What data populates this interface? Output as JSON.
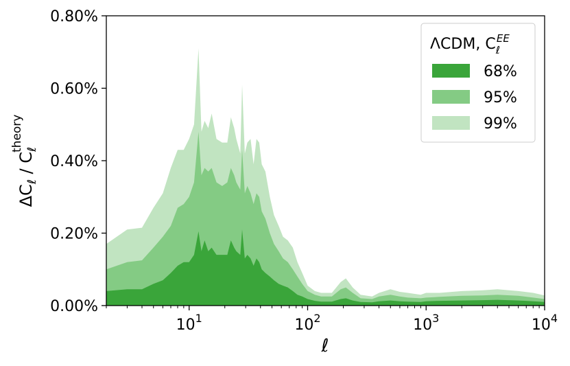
{
  "chart_data": {
    "type": "area",
    "xscale": "log",
    "xlim": [
      2,
      10000
    ],
    "ylim": [
      0,
      0.8
    ],
    "y_unit": "%",
    "xlabel": "ℓ",
    "ylabel": "ΔC_ℓ / C_ℓ^theory",
    "grid": false,
    "legend": {
      "placement": "top-right",
      "title": "ΛCDM, C_ℓ^EE"
    },
    "y_ticks": [
      {
        "value": 0.0,
        "label": "0.00%"
      },
      {
        "value": 0.2,
        "label": "0.20%"
      },
      {
        "value": 0.4,
        "label": "0.40%"
      },
      {
        "value": 0.6,
        "label": "0.60%"
      },
      {
        "value": 0.8,
        "label": "0.80%"
      }
    ],
    "x_ticks": [
      {
        "value": 10,
        "base": "10",
        "exp": "1"
      },
      {
        "value": 100,
        "base": "10",
        "exp": "2"
      },
      {
        "value": 1000,
        "base": "10",
        "exp": "3"
      },
      {
        "value": 10000,
        "base": "10",
        "exp": "4"
      }
    ],
    "series": [
      {
        "name": "99%",
        "color": "#c1e4c1",
        "points": [
          [
            2,
            0.17
          ],
          [
            3,
            0.21
          ],
          [
            4,
            0.215
          ],
          [
            5,
            0.27
          ],
          [
            6,
            0.31
          ],
          [
            7,
            0.38
          ],
          [
            8,
            0.43
          ],
          [
            9,
            0.43
          ],
          [
            10,
            0.46
          ],
          [
            11,
            0.5
          ],
          [
            12,
            0.71
          ],
          [
            12.7,
            0.48
          ],
          [
            13.5,
            0.51
          ],
          [
            14.5,
            0.49
          ],
          [
            15.5,
            0.53
          ],
          [
            17,
            0.46
          ],
          [
            19,
            0.45
          ],
          [
            21,
            0.45
          ],
          [
            22.5,
            0.52
          ],
          [
            24,
            0.49
          ],
          [
            25,
            0.46
          ],
          [
            27,
            0.42
          ],
          [
            28,
            0.61
          ],
          [
            29.5,
            0.42
          ],
          [
            31,
            0.45
          ],
          [
            33,
            0.46
          ],
          [
            35,
            0.39
          ],
          [
            37,
            0.46
          ],
          [
            39,
            0.45
          ],
          [
            41,
            0.39
          ],
          [
            44,
            0.37
          ],
          [
            48,
            0.3
          ],
          [
            52,
            0.25
          ],
          [
            57,
            0.22
          ],
          [
            62,
            0.19
          ],
          [
            68,
            0.18
          ],
          [
            75,
            0.16
          ],
          [
            82,
            0.12
          ],
          [
            90,
            0.09
          ],
          [
            100,
            0.055
          ],
          [
            115,
            0.04
          ],
          [
            130,
            0.035
          ],
          [
            160,
            0.035
          ],
          [
            190,
            0.065
          ],
          [
            210,
            0.075
          ],
          [
            240,
            0.05
          ],
          [
            280,
            0.03
          ],
          [
            350,
            0.025
          ],
          [
            400,
            0.035
          ],
          [
            500,
            0.045
          ],
          [
            600,
            0.038
          ],
          [
            700,
            0.035
          ],
          [
            900,
            0.03
          ],
          [
            1000,
            0.035
          ],
          [
            1300,
            0.035
          ],
          [
            2000,
            0.04
          ],
          [
            3000,
            0.042
          ],
          [
            4000,
            0.045
          ],
          [
            6000,
            0.04
          ],
          [
            8000,
            0.035
          ],
          [
            10000,
            0.028
          ]
        ]
      },
      {
        "name": "95%",
        "color": "#84cb84",
        "points": [
          [
            2,
            0.1
          ],
          [
            3,
            0.12
          ],
          [
            4,
            0.125
          ],
          [
            5,
            0.16
          ],
          [
            6,
            0.19
          ],
          [
            7,
            0.22
          ],
          [
            8,
            0.27
          ],
          [
            9,
            0.28
          ],
          [
            10,
            0.3
          ],
          [
            11,
            0.34
          ],
          [
            12,
            0.48
          ],
          [
            12.7,
            0.36
          ],
          [
            13.5,
            0.38
          ],
          [
            14.5,
            0.37
          ],
          [
            15.5,
            0.38
          ],
          [
            17,
            0.34
          ],
          [
            19,
            0.33
          ],
          [
            21,
            0.34
          ],
          [
            22.5,
            0.38
          ],
          [
            24,
            0.36
          ],
          [
            25,
            0.34
          ],
          [
            27,
            0.32
          ],
          [
            28,
            0.43
          ],
          [
            29.5,
            0.31
          ],
          [
            31,
            0.33
          ],
          [
            33,
            0.31
          ],
          [
            35,
            0.28
          ],
          [
            37,
            0.31
          ],
          [
            39,
            0.3
          ],
          [
            41,
            0.26
          ],
          [
            44,
            0.24
          ],
          [
            48,
            0.2
          ],
          [
            52,
            0.17
          ],
          [
            57,
            0.15
          ],
          [
            62,
            0.13
          ],
          [
            68,
            0.12
          ],
          [
            75,
            0.1
          ],
          [
            82,
            0.08
          ],
          [
            90,
            0.06
          ],
          [
            100,
            0.04
          ],
          [
            115,
            0.03
          ],
          [
            130,
            0.025
          ],
          [
            160,
            0.025
          ],
          [
            190,
            0.045
          ],
          [
            210,
            0.05
          ],
          [
            240,
            0.035
          ],
          [
            280,
            0.02
          ],
          [
            350,
            0.018
          ],
          [
            400,
            0.025
          ],
          [
            500,
            0.03
          ],
          [
            600,
            0.025
          ],
          [
            700,
            0.022
          ],
          [
            900,
            0.02
          ],
          [
            1000,
            0.022
          ],
          [
            1300,
            0.024
          ],
          [
            2000,
            0.027
          ],
          [
            3000,
            0.028
          ],
          [
            4000,
            0.03
          ],
          [
            6000,
            0.027
          ],
          [
            8000,
            0.022
          ],
          [
            10000,
            0.018
          ]
        ]
      },
      {
        "name": "68%",
        "color": "#3aa53a",
        "points": [
          [
            2,
            0.04
          ],
          [
            3,
            0.045
          ],
          [
            4,
            0.045
          ],
          [
            5,
            0.06
          ],
          [
            6,
            0.07
          ],
          [
            7,
            0.09
          ],
          [
            8,
            0.11
          ],
          [
            9,
            0.12
          ],
          [
            10,
            0.12
          ],
          [
            11,
            0.14
          ],
          [
            12,
            0.205
          ],
          [
            12.7,
            0.15
          ],
          [
            13.5,
            0.18
          ],
          [
            14.5,
            0.15
          ],
          [
            15.5,
            0.16
          ],
          [
            17,
            0.14
          ],
          [
            19,
            0.14
          ],
          [
            21,
            0.14
          ],
          [
            22.5,
            0.18
          ],
          [
            24,
            0.16
          ],
          [
            25,
            0.15
          ],
          [
            27,
            0.14
          ],
          [
            28,
            0.21
          ],
          [
            29.5,
            0.13
          ],
          [
            31,
            0.14
          ],
          [
            33,
            0.13
          ],
          [
            35,
            0.11
          ],
          [
            37,
            0.13
          ],
          [
            39,
            0.12
          ],
          [
            41,
            0.1
          ],
          [
            44,
            0.09
          ],
          [
            48,
            0.08
          ],
          [
            52,
            0.07
          ],
          [
            57,
            0.06
          ],
          [
            62,
            0.055
          ],
          [
            68,
            0.05
          ],
          [
            75,
            0.04
          ],
          [
            82,
            0.03
          ],
          [
            90,
            0.025
          ],
          [
            100,
            0.018
          ],
          [
            115,
            0.013
          ],
          [
            130,
            0.011
          ],
          [
            160,
            0.011
          ],
          [
            190,
            0.018
          ],
          [
            210,
            0.02
          ],
          [
            240,
            0.014
          ],
          [
            280,
            0.01
          ],
          [
            350,
            0.009
          ],
          [
            400,
            0.012
          ],
          [
            500,
            0.014
          ],
          [
            600,
            0.012
          ],
          [
            700,
            0.011
          ],
          [
            900,
            0.01
          ],
          [
            1000,
            0.012
          ],
          [
            1300,
            0.013
          ],
          [
            2000,
            0.014
          ],
          [
            3000,
            0.015
          ],
          [
            4000,
            0.016
          ],
          [
            6000,
            0.014
          ],
          [
            8000,
            0.012
          ],
          [
            10000,
            0.01
          ]
        ]
      }
    ]
  }
}
